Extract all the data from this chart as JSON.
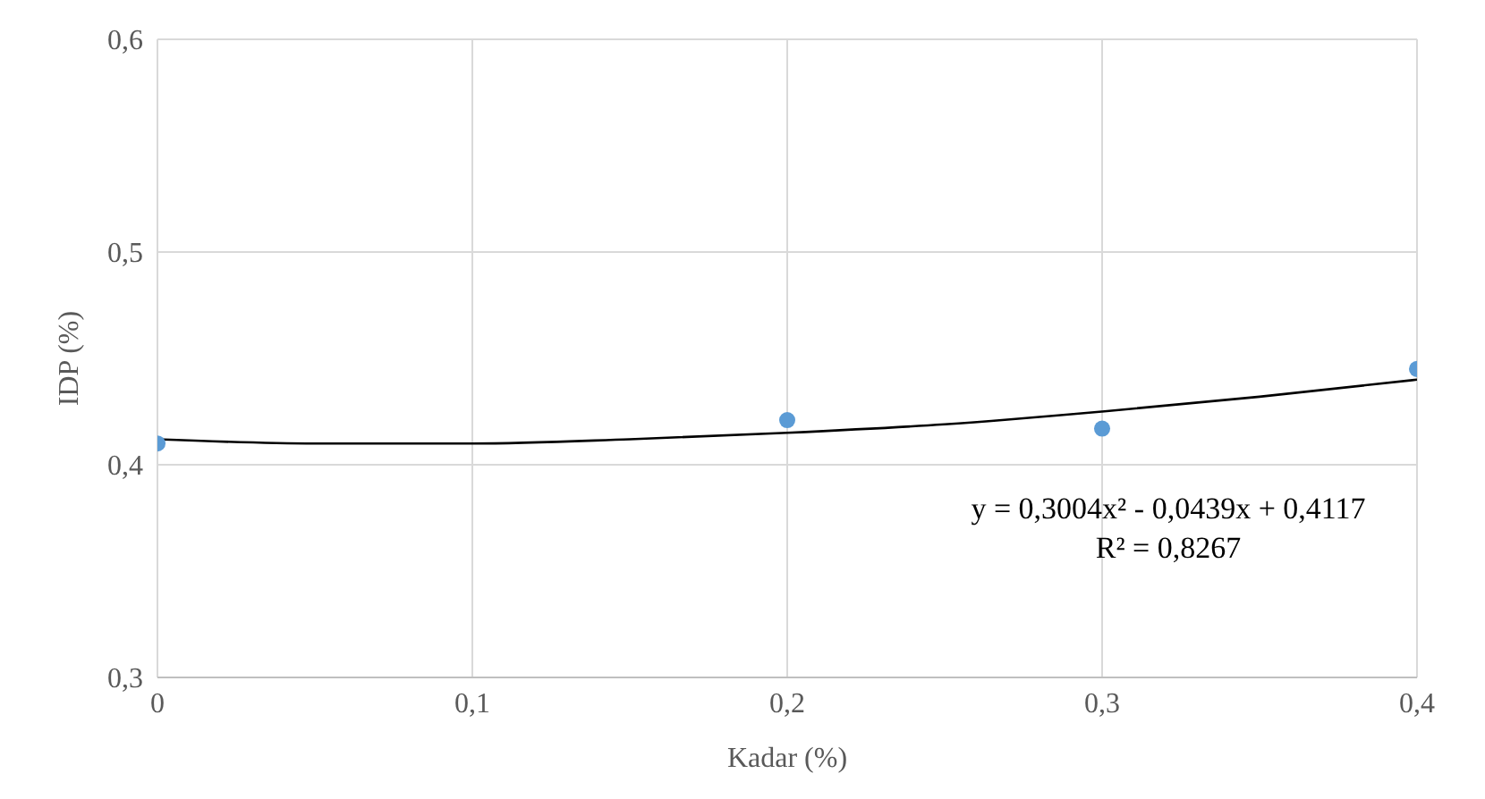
{
  "chart_data": {
    "type": "scatter",
    "xlabel": "Kadar (%)",
    "ylabel": "IDP (%)",
    "x": [
      0,
      0.2,
      0.3,
      0.4
    ],
    "series": [
      {
        "color": "#5b9bd5",
        "marker": "circle",
        "values": [
          0.41,
          0.421,
          0.417,
          0.445
        ]
      },
      {
        "type": "line",
        "marker": "none",
        "color": "#000000",
        "x": [
          0,
          0.05,
          0.1,
          0.15,
          0.2,
          0.25,
          0.3,
          0.35,
          0.4
        ],
        "values": [
          0.412,
          0.41,
          0.41,
          0.412,
          0.415,
          0.419,
          0.425,
          0.432,
          0.44
        ]
      }
    ],
    "xlim": [
      0,
      0.4
    ],
    "xticks": [
      {
        "value": 0,
        "label": "0"
      },
      {
        "value": 0.1,
        "label": "0,1"
      },
      {
        "value": 0.2,
        "label": "0,2"
      },
      {
        "value": 0.3,
        "label": "0,3"
      },
      {
        "value": 0.4,
        "label": "0,4"
      }
    ],
    "ylim": [
      0.3,
      0.6
    ],
    "yticks": [
      {
        "value": 0.3,
        "label": "0,3"
      },
      {
        "value": 0.4,
        "label": "0,4"
      },
      {
        "value": 0.5,
        "label": "0,5"
      },
      {
        "value": 0.6,
        "label": "0,6"
      }
    ],
    "grid": true,
    "line_style": "solid",
    "annotations": [
      "y = 0,3004x² - 0,0439x + 0,4117",
      "R² = 0,8267"
    ]
  }
}
